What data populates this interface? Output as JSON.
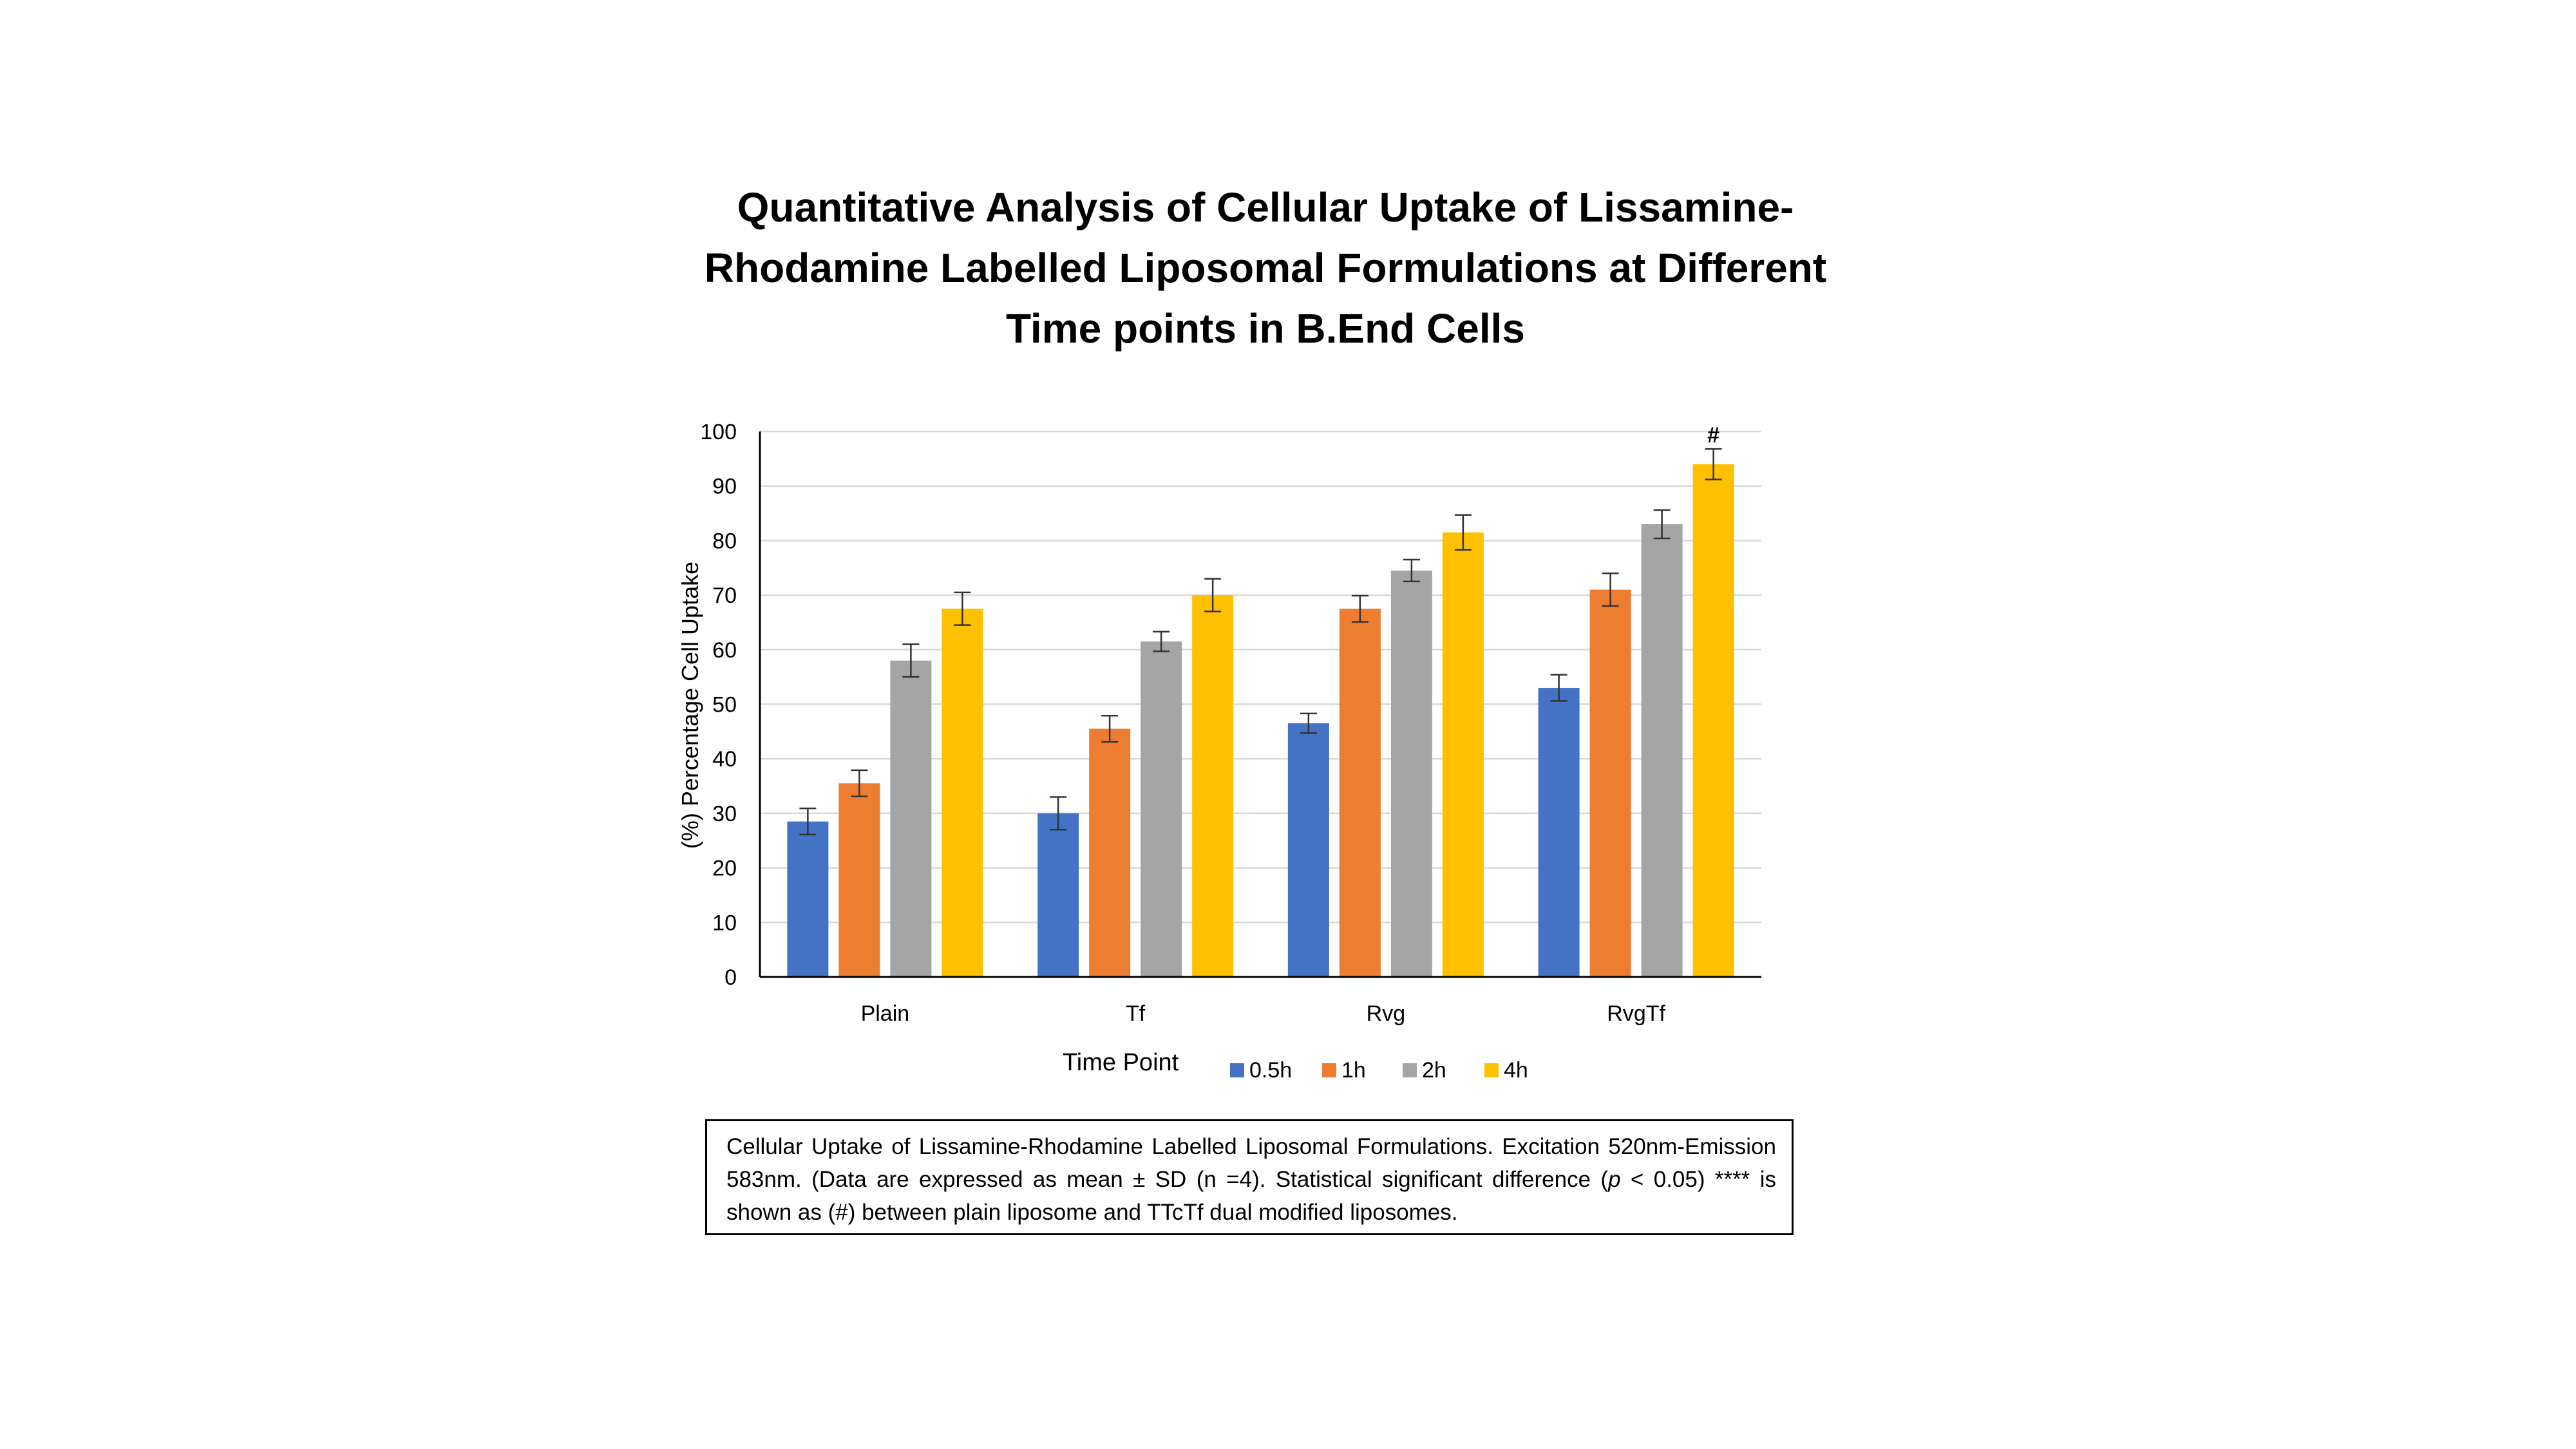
{
  "chart_data": {
    "type": "bar",
    "title_lines": [
      "Quantitative Analysis of Cellular Uptake of Lissamine-",
      "Rhodamine Labelled Liposomal Formulations at Different",
      "Time points in B.End Cells"
    ],
    "categories": [
      "Plain",
      "Tf",
      "Rvg",
      "RvgTf"
    ],
    "series": [
      {
        "name": "0.5h",
        "color": "#4472C4",
        "values": [
          28.5,
          30,
          46.5,
          53
        ],
        "errors": [
          2.4,
          3.0,
          1.8,
          2.4
        ]
      },
      {
        "name": "1h",
        "color": "#ED7D31",
        "values": [
          35.5,
          45.5,
          67.5,
          71
        ],
        "errors": [
          2.4,
          2.4,
          2.4,
          3.0
        ]
      },
      {
        "name": "2h",
        "color": "#A5A5A5",
        "values": [
          58,
          61.5,
          74.5,
          83
        ],
        "errors": [
          3.0,
          1.8,
          2.0,
          2.6
        ]
      },
      {
        "name": "4h",
        "color": "#FFC000",
        "values": [
          67.5,
          70,
          81.5,
          94
        ],
        "errors": [
          3.0,
          3.0,
          3.2,
          2.8
        ]
      }
    ],
    "xlabel": "",
    "ylabel": "(%) Percentage Cell Uptake",
    "ylim": [
      0,
      100
    ],
    "yticks": [
      0,
      10,
      20,
      30,
      40,
      50,
      60,
      70,
      80,
      90,
      100
    ],
    "grid": true,
    "legend": {
      "title": "Time Point",
      "placement": "bottom"
    },
    "annotations": [
      {
        "text": "#",
        "category": "RvgTf",
        "series": "4h"
      }
    ]
  },
  "caption": {
    "part1": "Cellular Uptake of Lissamine-Rhodamine Labelled Liposomal Formulations. Excitation 520nm-Emission 583nm. (Data are expressed as mean ± SD (n =4). Statistical significant difference (",
    "italic": "p",
    "part2": " < 0.05) **** is shown as (#) between plain liposome and TTcTf  dual modified liposomes."
  }
}
